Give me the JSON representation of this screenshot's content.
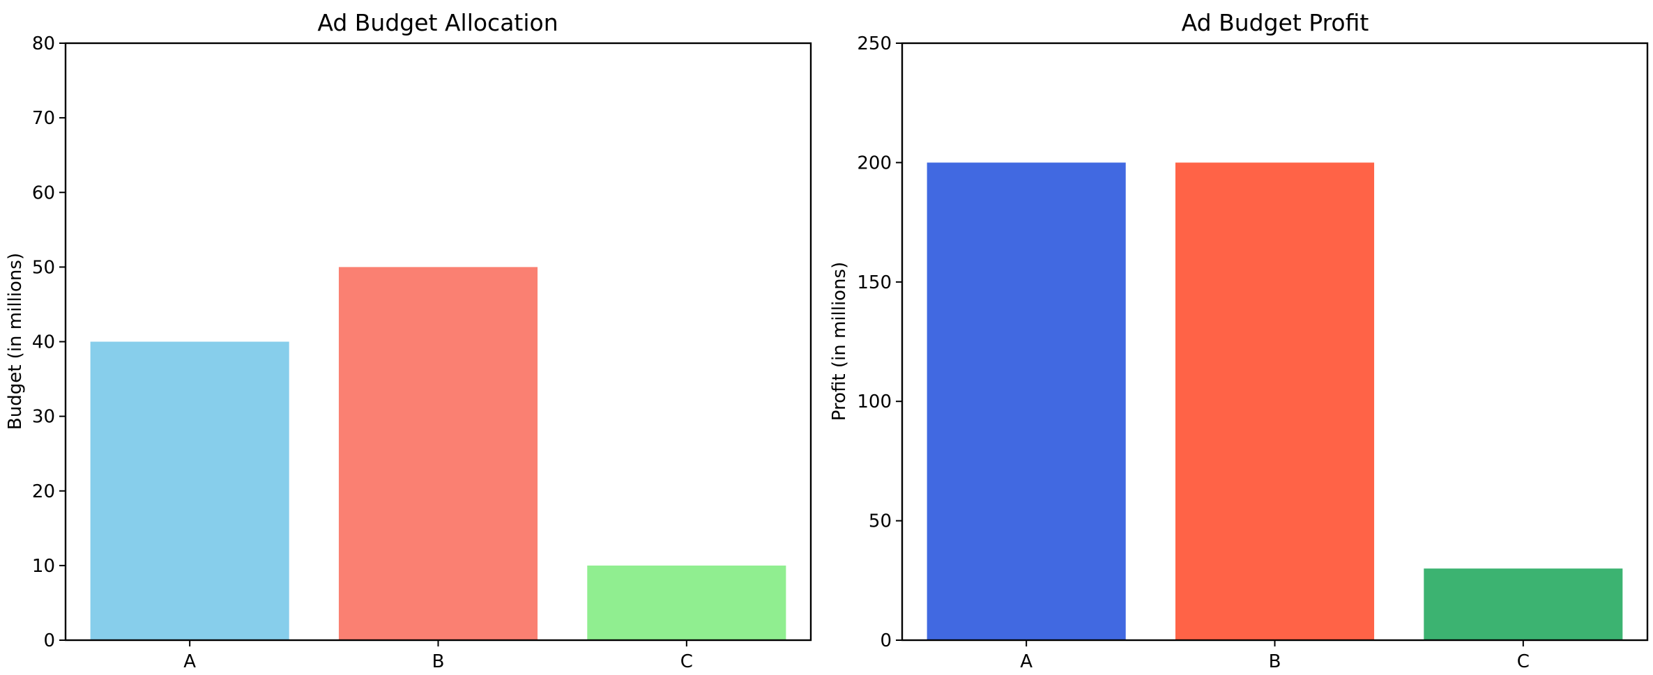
{
  "chart_data": [
    {
      "type": "bar",
      "title": "Ad Budget Allocation",
      "xlabel": "",
      "ylabel": "Budget (in millions)",
      "categories": [
        "A",
        "B",
        "C"
      ],
      "values": [
        40,
        50,
        10
      ],
      "colors": [
        "#87ceeb",
        "#fa8072",
        "#90ee90"
      ],
      "ylim": [
        0,
        80
      ],
      "yticks": [
        0,
        10,
        20,
        30,
        40,
        50,
        60,
        70,
        80
      ],
      "grid": false
    },
    {
      "type": "bar",
      "title": "Ad Budget Profit",
      "xlabel": "",
      "ylabel": "Profit (in millions)",
      "categories": [
        "A",
        "B",
        "C"
      ],
      "values": [
        200,
        200,
        30
      ],
      "colors": [
        "#4169e1",
        "#ff6347",
        "#3cb371"
      ],
      "ylim": [
        0,
        250
      ],
      "yticks": [
        0,
        50,
        100,
        150,
        200,
        250
      ],
      "grid": false
    }
  ]
}
